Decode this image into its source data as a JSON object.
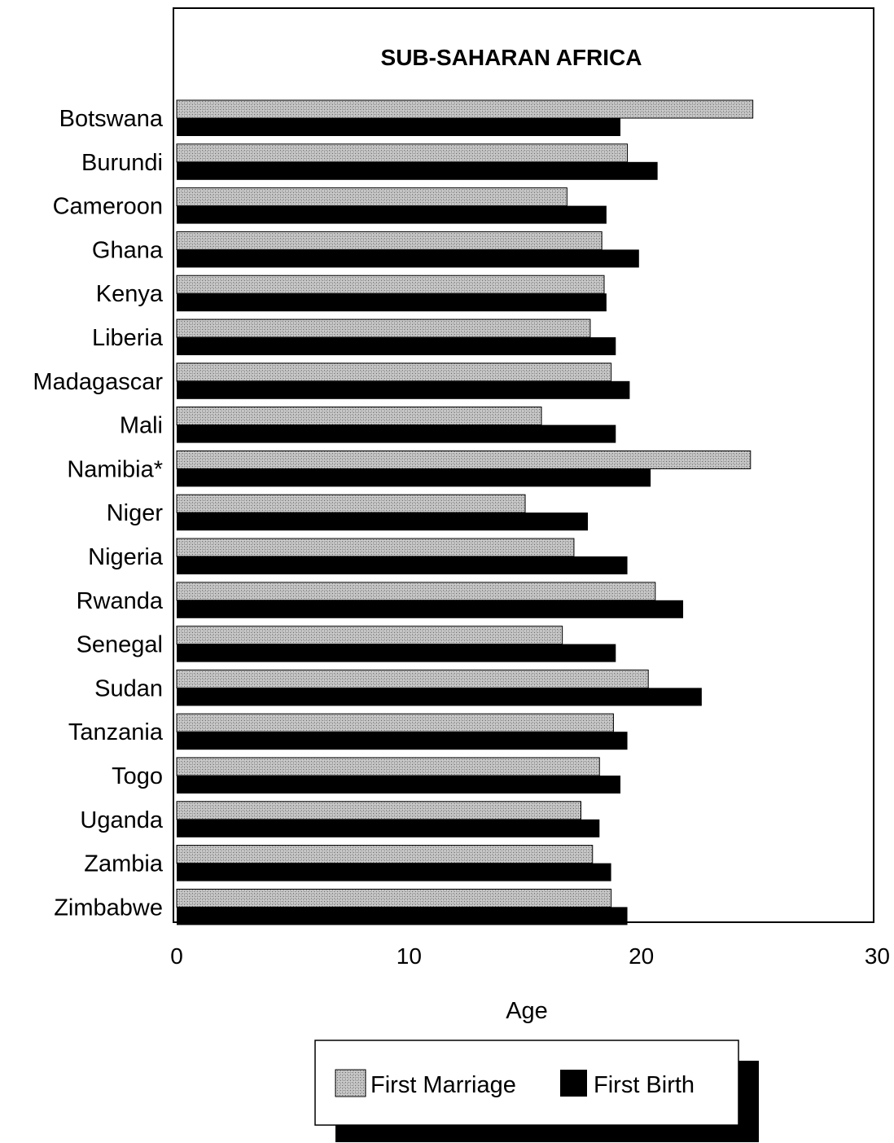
{
  "chart_data": {
    "type": "bar",
    "orientation": "horizontal",
    "title": "SUB-SAHARAN AFRICA",
    "xlabel": "Age",
    "ylabel": "",
    "xlim": [
      0,
      30
    ],
    "xticks": [
      "0",
      "10",
      "20",
      "30"
    ],
    "grid": false,
    "legend_position": "bottom",
    "categories": [
      "Botswana",
      "Burundi",
      "Cameroon",
      "Ghana",
      "Kenya",
      "Liberia",
      "Madagascar",
      "Mali",
      "Namibia*",
      "Niger",
      "Nigeria",
      "Rwanda",
      "Senegal",
      "Sudan",
      "Tanzania",
      "Togo",
      "Uganda",
      "Zambia",
      "Zimbabwe"
    ],
    "series": [
      {
        "name": "First Marriage",
        "pattern": "stippled-gray",
        "color": "#b0b0b0",
        "values": [
          24.8,
          19.4,
          16.8,
          18.3,
          18.4,
          17.8,
          18.7,
          15.7,
          24.7,
          15.0,
          17.1,
          20.6,
          16.6,
          20.3,
          18.8,
          18.2,
          17.4,
          17.9,
          18.7
        ]
      },
      {
        "name": "First Birth",
        "pattern": "solid-black",
        "color": "#000000",
        "values": [
          19.1,
          20.7,
          18.5,
          19.9,
          18.5,
          18.9,
          19.5,
          18.9,
          20.4,
          17.7,
          19.4,
          21.8,
          18.9,
          22.6,
          19.4,
          19.1,
          18.2,
          18.7,
          19.4
        ]
      }
    ]
  }
}
